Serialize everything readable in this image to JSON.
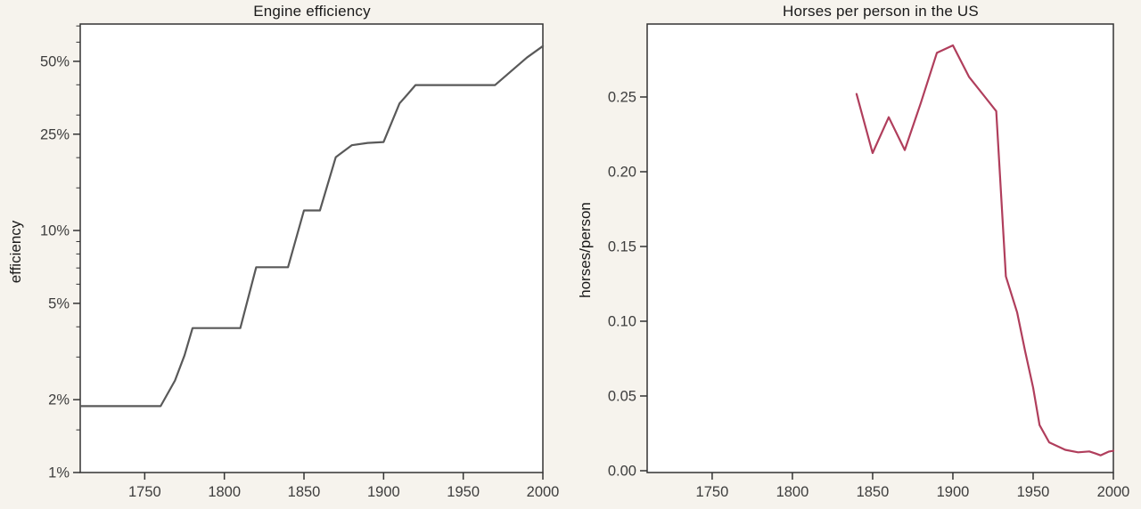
{
  "figure": {
    "background": "#f6f3ed",
    "plot_background": "#ffffff",
    "spine_color": "#333333",
    "tick_label_color": "#3d3d3d",
    "title_color": "#1a1a1a"
  },
  "chart_data": [
    {
      "id": "engine-efficiency",
      "type": "line",
      "title": "Engine efficiency",
      "xlabel": "",
      "ylabel": "efficiency",
      "yscale": "log",
      "xlim": [
        1709.5,
        2000
      ],
      "ylim": [
        1,
        71.3
      ],
      "grid": false,
      "legend": "none",
      "line_color": "#595959",
      "line_width": 2.2,
      "xticks": [
        {
          "v": 1750,
          "label": "1750"
        },
        {
          "v": 1800,
          "label": "1800"
        },
        {
          "v": 1850,
          "label": "1850"
        },
        {
          "v": 1900,
          "label": "1900"
        },
        {
          "v": 1950,
          "label": "1950"
        },
        {
          "v": 2000,
          "label": "2000"
        }
      ],
      "yticks": [
        {
          "v": 50,
          "label": "50%"
        },
        {
          "v": 25,
          "label": "25%"
        },
        {
          "v": 10,
          "label": "10%"
        },
        {
          "v": 5,
          "label": "5%"
        },
        {
          "v": 2,
          "label": "2%"
        },
        {
          "v": 1,
          "label": "1%"
        }
      ],
      "yticks_minor": [
        1.5,
        3,
        4,
        6,
        7,
        8,
        9,
        15,
        20,
        30,
        40,
        60,
        70
      ],
      "points": [
        [
          1710,
          1.88
        ],
        [
          1760,
          1.88
        ],
        [
          1769,
          2.4
        ],
        [
          1775,
          3.05
        ],
        [
          1780,
          3.95
        ],
        [
          1810,
          3.95
        ],
        [
          1820,
          7.05
        ],
        [
          1840,
          7.05
        ],
        [
          1850,
          12.1
        ],
        [
          1860,
          12.1
        ],
        [
          1870,
          20.1
        ],
        [
          1880,
          22.5
        ],
        [
          1890,
          23.0
        ],
        [
          1900,
          23.2
        ],
        [
          1910,
          33.5
        ],
        [
          1915,
          36.5
        ],
        [
          1920,
          39.9
        ],
        [
          1970,
          39.9
        ],
        [
          1980,
          45.5
        ],
        [
          1990,
          51.8
        ],
        [
          2000,
          57.8
        ]
      ]
    },
    {
      "id": "horses-per-person",
      "type": "line",
      "title": "Horses per person in the US",
      "xlabel": "",
      "ylabel": "horses/person",
      "yscale": "linear",
      "xlim": [
        1709.5,
        2000
      ],
      "ylim": [
        -0.0012,
        0.2988
      ],
      "grid": false,
      "legend": "none",
      "line_color": "#b03e5c",
      "line_width": 2.2,
      "xticks": [
        {
          "v": 1750,
          "label": "1750"
        },
        {
          "v": 1800,
          "label": "1800"
        },
        {
          "v": 1850,
          "label": "1850"
        },
        {
          "v": 1900,
          "label": "1900"
        },
        {
          "v": 1950,
          "label": "1950"
        },
        {
          "v": 2000,
          "label": "2000"
        }
      ],
      "yticks": [
        {
          "v": 0.25,
          "label": "0.25"
        },
        {
          "v": 0.2,
          "label": "0.20"
        },
        {
          "v": 0.15,
          "label": "0.15"
        },
        {
          "v": 0.1,
          "label": "0.10"
        },
        {
          "v": 0.05,
          "label": "0.05"
        },
        {
          "v": 0.0,
          "label": "0.00"
        }
      ],
      "yticks_minor": [],
      "points": [
        [
          1840,
          0.252
        ],
        [
          1850,
          0.2125
        ],
        [
          1860,
          0.2365
        ],
        [
          1870,
          0.2145
        ],
        [
          1880,
          0.246
        ],
        [
          1890,
          0.2795
        ],
        [
          1900,
          0.2845
        ],
        [
          1910,
          0.2635
        ],
        [
          1920,
          0.25
        ],
        [
          1927,
          0.2405
        ],
        [
          1933,
          0.13
        ],
        [
          1940,
          0.106
        ],
        [
          1945,
          0.08
        ],
        [
          1950,
          0.0555
        ],
        [
          1954,
          0.0305
        ],
        [
          1960,
          0.019
        ],
        [
          1970,
          0.014
        ],
        [
          1978,
          0.0123
        ],
        [
          1985,
          0.0129
        ],
        [
          1989,
          0.0115
        ],
        [
          1992,
          0.0103
        ],
        [
          1997,
          0.0127
        ],
        [
          2000,
          0.0133
        ]
      ]
    }
  ]
}
